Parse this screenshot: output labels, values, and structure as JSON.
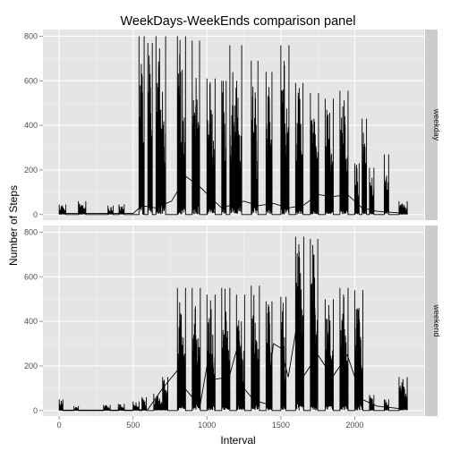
{
  "chart_data": {
    "type": "line",
    "title": "WeekDays-WeekEnds comparison panel",
    "xlabel": "Interval",
    "ylabel": "Number of Steps",
    "xlim": [
      -110,
      2470
    ],
    "ylim": [
      -25,
      830
    ],
    "x_ticks": [
      0,
      500,
      1000,
      1500,
      2000
    ],
    "y_ticks": [
      0,
      200,
      400,
      600,
      800
    ],
    "grid": true,
    "legend": "none",
    "colors": {
      "panel_bg": "#e5e5e5",
      "grid_major": "#ffffff",
      "strip_bg": "#cccccc",
      "line": "#000000",
      "tick_label": "#4d4d4d"
    },
    "panels": [
      {
        "label": "weekday",
        "bursts": [
          {
            "x": [
              0,
              45
            ],
            "max": 45
          },
          {
            "x": [
              130,
              180
            ],
            "max": 60
          },
          {
            "x": [
              330,
              365
            ],
            "max": 40
          },
          {
            "x": [
              405,
              440
            ],
            "max": 45
          },
          {
            "x": [
              540,
              575
            ],
            "max": 800
          },
          {
            "x": [
              600,
              630
            ],
            "max": 770
          },
          {
            "x": [
              655,
              720
            ],
            "max": 800
          },
          {
            "x": [
              800,
              855
            ],
            "max": 800
          },
          {
            "x": [
              900,
              950
            ],
            "max": 780
          },
          {
            "x": [
              1000,
              1055
            ],
            "max": 610
          },
          {
            "x": [
              1100,
              1130
            ],
            "max": 600
          },
          {
            "x": [
              1155,
              1235
            ],
            "max": 760
          },
          {
            "x": [
              1300,
              1345
            ],
            "max": 690
          },
          {
            "x": [
              1400,
              1440
            ],
            "max": 640
          },
          {
            "x": [
              1500,
              1555
            ],
            "max": 760
          },
          {
            "x": [
              1600,
              1650
            ],
            "max": 590
          },
          {
            "x": [
              1700,
              1755
            ],
            "max": 545
          },
          {
            "x": [
              1800,
              1855
            ],
            "max": 520
          },
          {
            "x": [
              1900,
              1955
            ],
            "max": 555
          },
          {
            "x": [
              2000,
              2030
            ],
            "max": 230
          },
          {
            "x": [
              2050,
              2080
            ],
            "max": 430
          },
          {
            "x": [
              2100,
              2130
            ],
            "max": 210
          },
          {
            "x": [
              2200,
              2230
            ],
            "max": 270
          },
          {
            "x": [
              2300,
              2355
            ],
            "max": 60
          }
        ],
        "baseline": [
          [
            0,
            5
          ],
          [
            500,
            5
          ],
          [
            560,
            40
          ],
          [
            650,
            30
          ],
          [
            760,
            60
          ],
          [
            860,
            170
          ],
          [
            960,
            120
          ],
          [
            1050,
            60
          ],
          [
            1100,
            30
          ],
          [
            1250,
            60
          ],
          [
            1350,
            40
          ],
          [
            1450,
            50
          ],
          [
            1550,
            30
          ],
          [
            1650,
            40
          ],
          [
            1750,
            90
          ],
          [
            1850,
            80
          ],
          [
            1950,
            90
          ],
          [
            2050,
            30
          ],
          [
            2150,
            15
          ],
          [
            2355,
            5
          ]
        ]
      },
      {
        "label": "weekend",
        "bursts": [
          {
            "x": [
              0,
              25
            ],
            "max": 50
          },
          {
            "x": [
              100,
              130
            ],
            "max": 20
          },
          {
            "x": [
              300,
              345
            ],
            "max": 25
          },
          {
            "x": [
              400,
              440
            ],
            "max": 30
          },
          {
            "x": [
              500,
              540
            ],
            "max": 40
          },
          {
            "x": [
              560,
              590
            ],
            "max": 60
          },
          {
            "x": [
              640,
              700
            ],
            "max": 75
          },
          {
            "x": [
              700,
              735
            ],
            "max": 150
          },
          {
            "x": [
              800,
              855
            ],
            "max": 550
          },
          {
            "x": [
              900,
              955
            ],
            "max": 550
          },
          {
            "x": [
              1000,
              1055
            ],
            "max": 520
          },
          {
            "x": [
              1100,
              1155
            ],
            "max": 550
          },
          {
            "x": [
              1200,
              1255
            ],
            "max": 520
          },
          {
            "x": [
              1300,
              1355
            ],
            "max": 560
          },
          {
            "x": [
              1400,
              1440
            ],
            "max": 490
          },
          {
            "x": [
              1500,
              1535
            ],
            "max": 510
          },
          {
            "x": [
              1600,
              1655
            ],
            "max": 780
          },
          {
            "x": [
              1700,
              1750
            ],
            "max": 770
          },
          {
            "x": [
              1800,
              1855
            ],
            "max": 500
          },
          {
            "x": [
              1900,
              1955
            ],
            "max": 550
          },
          {
            "x": [
              2000,
              2055
            ],
            "max": 540
          },
          {
            "x": [
              2100,
              2130
            ],
            "max": 70
          },
          {
            "x": [
              2200,
              2230
            ],
            "max": 50
          },
          {
            "x": [
              2300,
              2355
            ],
            "max": 150
          }
        ],
        "baseline": [
          [
            0,
            2
          ],
          [
            500,
            2
          ],
          [
            600,
            5
          ],
          [
            700,
            100
          ],
          [
            800,
            180
          ],
          [
            850,
            100
          ],
          [
            900,
            60
          ],
          [
            950,
            10
          ],
          [
            1000,
            200
          ],
          [
            1050,
            140
          ],
          [
            1150,
            150
          ],
          [
            1200,
            270
          ],
          [
            1250,
            100
          ],
          [
            1300,
            60
          ],
          [
            1350,
            40
          ],
          [
            1400,
            30
          ],
          [
            1450,
            300
          ],
          [
            1500,
            280
          ],
          [
            1550,
            150
          ],
          [
            1600,
            350
          ],
          [
            1650,
            150
          ],
          [
            1750,
            250
          ],
          [
            1850,
            150
          ],
          [
            1950,
            250
          ],
          [
            2050,
            50
          ],
          [
            2150,
            20
          ],
          [
            2355,
            5
          ]
        ]
      }
    ]
  }
}
